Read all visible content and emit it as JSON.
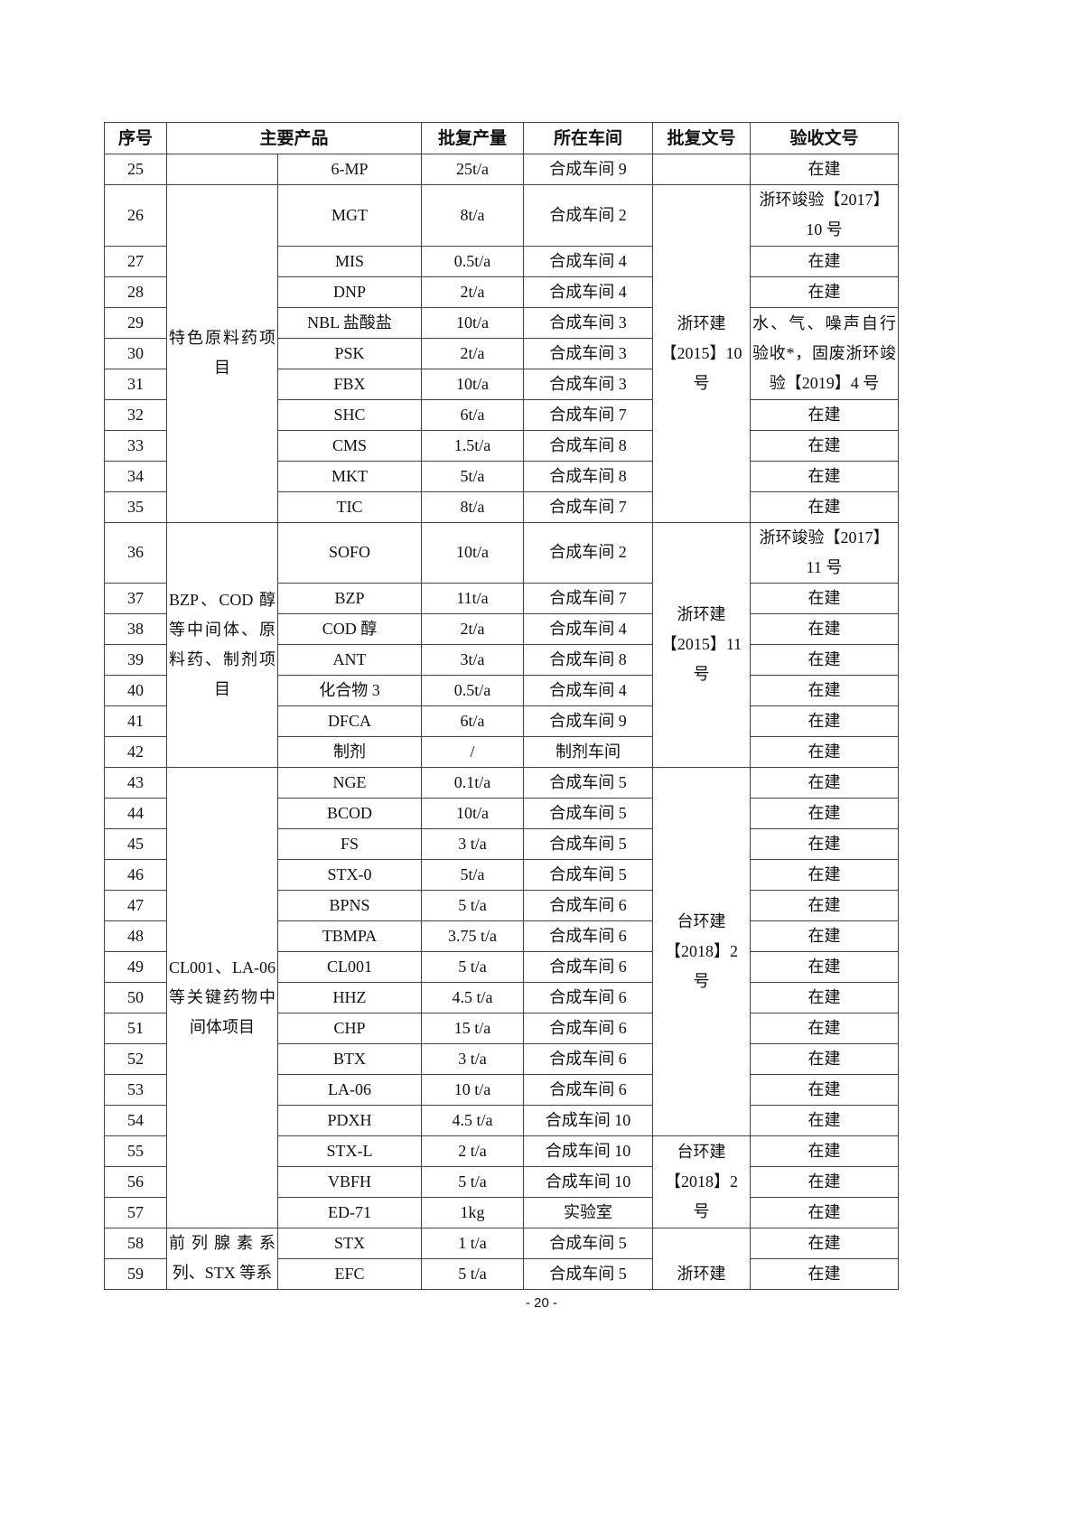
{
  "headers": {
    "no": "序号",
    "product": "主要产品",
    "capacity": "批复产量",
    "workshop": "所在车间",
    "approval": "批复文号",
    "acceptance": "验收文号"
  },
  "rows": [
    {
      "no": "25",
      "product": "6-MP",
      "capacity": "25t/a",
      "workshop": "合成车间 9",
      "acceptance": "在建"
    },
    {
      "no": "26",
      "product": "MGT",
      "capacity": "8t/a",
      "workshop": "合成车间 2",
      "acceptance": "浙环竣验【2017】10 号"
    },
    {
      "no": "27",
      "product": "MIS",
      "capacity": "0.5t/a",
      "workshop": "合成车间 4",
      "acceptance": "在建"
    },
    {
      "no": "28",
      "product": "DNP",
      "capacity": "2t/a",
      "workshop": "合成车间 4",
      "acceptance": "在建"
    },
    {
      "no": "29",
      "product": "NBL 盐酸盐",
      "capacity": "10t/a",
      "workshop": "合成车间 3",
      "acceptance": "水、气、噪声自行验收*，固废浙环竣验【2019】4 号"
    },
    {
      "no": "30",
      "product": "PSK",
      "capacity": "2t/a",
      "workshop": "合成车间 3"
    },
    {
      "no": "31",
      "product": "FBX",
      "capacity": "10t/a",
      "workshop": "合成车间 3"
    },
    {
      "no": "32",
      "product": "SHC",
      "capacity": "6t/a",
      "workshop": "合成车间 7",
      "acceptance": "在建"
    },
    {
      "no": "33",
      "product": "CMS",
      "capacity": "1.5t/a",
      "workshop": "合成车间 8",
      "acceptance": "在建"
    },
    {
      "no": "34",
      "product": "MKT",
      "capacity": "5t/a",
      "workshop": "合成车间 8",
      "acceptance": "在建"
    },
    {
      "no": "35",
      "product": "TIC",
      "capacity": "8t/a",
      "workshop": "合成车间 7",
      "acceptance": "在建"
    },
    {
      "no": "36",
      "product": "SOFO",
      "capacity": "10t/a",
      "workshop": "合成车间 2",
      "acceptance": "浙环竣验【2017】11 号"
    },
    {
      "no": "37",
      "product": "BZP",
      "capacity": "11t/a",
      "workshop": "合成车间 7",
      "acceptance": "在建"
    },
    {
      "no": "38",
      "product": "COD 醇",
      "capacity": "2t/a",
      "workshop": "合成车间 4",
      "acceptance": "在建"
    },
    {
      "no": "39",
      "product": "ANT",
      "capacity": "3t/a",
      "workshop": "合成车间 8",
      "acceptance": "在建"
    },
    {
      "no": "40",
      "product": "化合物 3",
      "capacity": "0.5t/a",
      "workshop": "合成车间 4",
      "acceptance": "在建"
    },
    {
      "no": "41",
      "product": "DFCA",
      "capacity": "6t/a",
      "workshop": "合成车间 9",
      "acceptance": "在建"
    },
    {
      "no": "42",
      "product": "制剂",
      "capacity": "/",
      "workshop": "制剂车间",
      "acceptance": "在建"
    },
    {
      "no": "43",
      "product": "NGE",
      "capacity": "0.1t/a",
      "workshop": "合成车间 5",
      "acceptance": "在建"
    },
    {
      "no": "44",
      "product": "BCOD",
      "capacity": "10t/a",
      "workshop": "合成车间 5",
      "acceptance": "在建"
    },
    {
      "no": "45",
      "product": "FS",
      "capacity": "3 t/a",
      "workshop": "合成车间 5",
      "acceptance": "在建"
    },
    {
      "no": "46",
      "product": "STX-0",
      "capacity": "5t/a",
      "workshop": "合成车间 5",
      "acceptance": "在建"
    },
    {
      "no": "47",
      "product": "BPNS",
      "capacity": "5 t/a",
      "workshop": "合成车间 6",
      "acceptance": "在建"
    },
    {
      "no": "48",
      "product": "TBMPA",
      "capacity": "3.75 t/a",
      "workshop": "合成车间 6",
      "acceptance": "在建"
    },
    {
      "no": "49",
      "product": "CL001",
      "capacity": "5 t/a",
      "workshop": "合成车间 6",
      "acceptance": "在建"
    },
    {
      "no": "50",
      "product": "HHZ",
      "capacity": "4.5 t/a",
      "workshop": "合成车间 6",
      "acceptance": "在建"
    },
    {
      "no": "51",
      "product": "CHP",
      "capacity": "15 t/a",
      "workshop": "合成车间 6",
      "acceptance": "在建"
    },
    {
      "no": "52",
      "product": "BTX",
      "capacity": "3 t/a",
      "workshop": "合成车间 6",
      "acceptance": "在建"
    },
    {
      "no": "53",
      "product": "LA-06",
      "capacity": "10 t/a",
      "workshop": "合成车间 6",
      "acceptance": "在建"
    },
    {
      "no": "54",
      "product": "PDXH",
      "capacity": "4.5 t/a",
      "workshop": "合成车间 10",
      "acceptance": "在建"
    },
    {
      "no": "55",
      "product": "STX-L",
      "capacity": "2 t/a",
      "workshop": "合成车间 10",
      "acceptance": "在建"
    },
    {
      "no": "56",
      "product": "VBFH",
      "capacity": "5 t/a",
      "workshop": "合成车间 10",
      "acceptance": "在建"
    },
    {
      "no": "57",
      "product": "ED-71",
      "capacity": "1kg",
      "workshop": "实验室",
      "acceptance": "在建"
    },
    {
      "no": "58",
      "product": "STX",
      "capacity": "1 t/a",
      "workshop": "合成车间 5",
      "acceptance": "在建"
    },
    {
      "no": "59",
      "product": "EFC",
      "capacity": "5 t/a",
      "workshop": "合成车间 5",
      "acceptance": "在建"
    }
  ],
  "groups": [
    {
      "start": 0,
      "span": 1,
      "label": ""
    },
    {
      "start": 1,
      "span": 10,
      "label": "特色原料药项目"
    },
    {
      "start": 11,
      "span": 7,
      "label": "BZP、COD 醇等中间体、原料药、制剂项目"
    },
    {
      "start": 18,
      "span": 15,
      "label": "CL001、LA-06 等关键药物中间体项目"
    },
    {
      "start": 33,
      "span": 2,
      "label": "前列腺素系列、STX 等系"
    }
  ],
  "approvals": [
    {
      "start": 0,
      "span": 1,
      "label": ""
    },
    {
      "start": 1,
      "span": 10,
      "label": "浙环建【2015】10 号"
    },
    {
      "start": 11,
      "span": 7,
      "label": "浙环建【2015】11 号"
    },
    {
      "start": 18,
      "span": 12,
      "label": "台环建【2018】2 号"
    },
    {
      "start": 30,
      "span": 3,
      "label": "台环建【2018】2 号"
    },
    {
      "start": 33,
      "span": 2,
      "label": "浙环建"
    }
  ],
  "acceptance_merge": {
    "start": 4,
    "span": 3
  },
  "double_rows": [
    1,
    11
  ],
  "page_number": "- 20 -"
}
